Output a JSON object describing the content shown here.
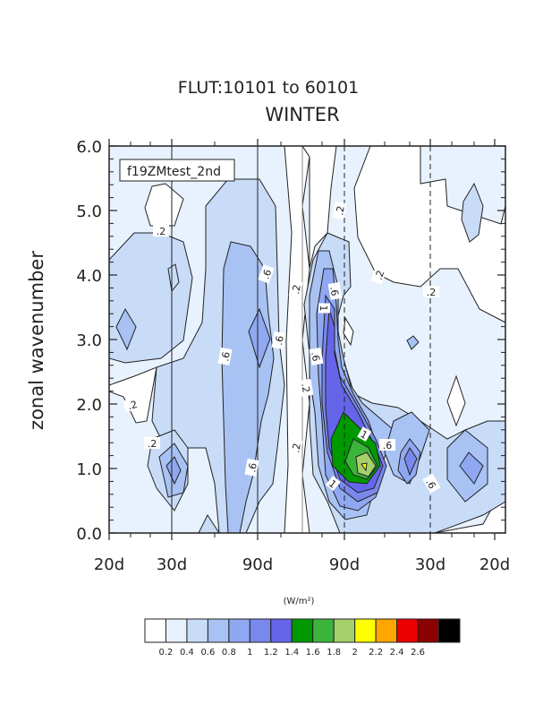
{
  "chart_data": {
    "type": "heatmap",
    "subtype": "filled-contour",
    "title": "FLUT:10101 to 60101",
    "subtitle": "WINTER",
    "panel_label": "f19ZMtest_2nd",
    "ylabel": "zonal wavenumber",
    "xlabel": "",
    "ylim": [
      0.0,
      6.0
    ],
    "y_ticks": [
      0.0,
      1.0,
      2.0,
      3.0,
      4.0,
      5.0,
      6.0
    ],
    "y_tick_labels": [
      "0.0",
      "1.0",
      "2.0",
      "3.0",
      "4.0",
      "5.0",
      "6.0"
    ],
    "x_tick_labels": [
      "20d",
      "30d",
      "90d",
      "90d",
      "30d",
      "20d"
    ],
    "reference_lines": [
      "30d",
      "90d",
      "90d",
      "30d"
    ],
    "colorbar": {
      "units": "(W/m²)",
      "levels": [
        "0.2",
        "0.4",
        "0.6",
        "0.8",
        "1",
        "1.2",
        "1.4",
        "1.6",
        "1.8",
        "2",
        "2.2",
        "2.4",
        "2.6"
      ],
      "colors": [
        "#ffffff",
        "#e8f2fe",
        "#c8dcf8",
        "#a8c2f4",
        "#90a8f2",
        "#7888ec",
        "#6565ea",
        "#009900",
        "#3cb43c",
        "#a6d06a",
        "#ffff00",
        "#ffa500",
        "#ee0000",
        "#8b0000",
        "#000000"
      ]
    },
    "contour_labels": [
      ".2",
      ".2",
      ".2",
      ".2",
      ".2",
      ".2",
      ".2",
      ".2",
      ".2",
      ".6",
      ".6",
      ".6",
      ".6",
      ".6",
      ".6",
      ".6",
      ".6",
      "1",
      "1",
      "1"
    ],
    "peak_value": 1.8
  }
}
